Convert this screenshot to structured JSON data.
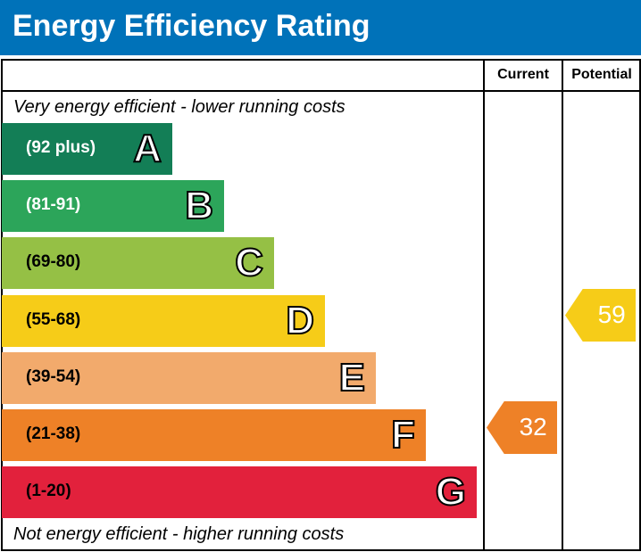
{
  "title": "Energy Efficiency Rating",
  "chart_data": {
    "type": "bar",
    "title": "Energy Efficiency Rating",
    "columns": [
      "Current",
      "Potential"
    ],
    "top_note": "Very energy efficient - lower running costs",
    "bottom_note": "Not energy efficient - higher running costs",
    "bands": [
      {
        "letter": "A",
        "range": "(92 plus)",
        "color": "#137e56",
        "label_color": "#ffffff"
      },
      {
        "letter": "B",
        "range": "(81-91)",
        "color": "#2ca55a",
        "label_color": "#ffffff"
      },
      {
        "letter": "C",
        "range": "(69-80)",
        "color": "#95c045",
        "label_color": "#000000"
      },
      {
        "letter": "D",
        "range": "(55-68)",
        "color": "#f6cc18",
        "label_color": "#000000"
      },
      {
        "letter": "E",
        "range": "(39-54)",
        "color": "#f2aa6c",
        "label_color": "#000000"
      },
      {
        "letter": "F",
        "range": "(21-38)",
        "color": "#ee8127",
        "label_color": "#000000"
      },
      {
        "letter": "G",
        "range": "(1-20)",
        "color": "#e2213c",
        "label_color": "#000000"
      }
    ],
    "current": {
      "value": "32",
      "band": "F",
      "color": "#ee8127"
    },
    "potential": {
      "value": "59",
      "band": "D",
      "color": "#f6cc18"
    }
  }
}
